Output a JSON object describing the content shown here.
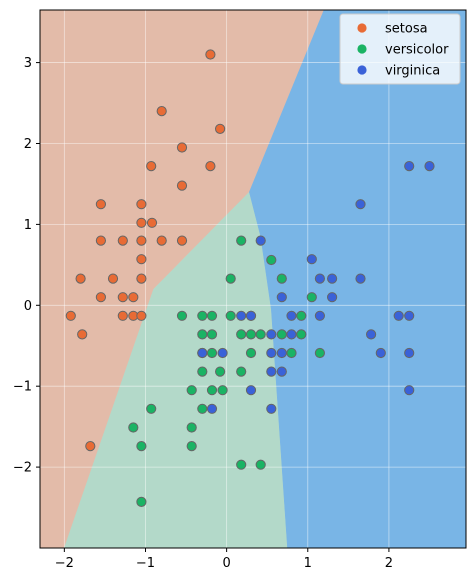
{
  "chart_data": {
    "type": "scatter",
    "title": "",
    "xlabel": "",
    "ylabel": "",
    "xlim": [
      -2.3,
      2.95
    ],
    "ylim": [
      -3.0,
      3.65
    ],
    "xticks": [
      -2,
      -1,
      0,
      1,
      2
    ],
    "yticks": [
      -2,
      -1,
      0,
      1,
      2,
      3
    ],
    "xtick_labels": [
      "−2",
      "−1",
      "0",
      "1",
      "2"
    ],
    "ytick_labels": [
      "−2",
      "−1",
      "0",
      "1",
      "2",
      "3"
    ],
    "grid": true,
    "legend_position": "top-right",
    "regions": [
      {
        "name": "setosa",
        "color": "#e3bba9",
        "polygon": [
          [
            -2.3,
            -3.0
          ],
          [
            -2.3,
            3.65
          ],
          [
            1.2,
            3.65
          ],
          [
            0.28,
            1.4
          ],
          [
            -0.9,
            0.2
          ],
          [
            -2.0,
            -3.0
          ]
        ]
      },
      {
        "name": "versicolor",
        "color": "#b3d9c9",
        "polygon": [
          [
            -2.0,
            -3.0
          ],
          [
            -0.9,
            0.2
          ],
          [
            0.28,
            1.4
          ],
          [
            0.42,
            0.85
          ],
          [
            0.55,
            -0.05
          ],
          [
            0.75,
            -3.0
          ]
        ]
      },
      {
        "name": "virginica",
        "color": "#79b5e6",
        "polygon": [
          [
            1.2,
            3.65
          ],
          [
            2.95,
            3.65
          ],
          [
            2.95,
            -3.0
          ],
          [
            0.75,
            -3.0
          ],
          [
            0.55,
            -0.05
          ],
          [
            0.42,
            0.85
          ],
          [
            0.28,
            1.4
          ]
        ]
      }
    ],
    "series": [
      {
        "name": "setosa",
        "color": "#e86b35",
        "points": [
          [
            -0.2,
            3.1
          ],
          [
            -0.8,
            2.4
          ],
          [
            -0.08,
            2.18
          ],
          [
            -0.55,
            1.95
          ],
          [
            -0.2,
            1.72
          ],
          [
            -0.93,
            1.72
          ],
          [
            -0.55,
            1.48
          ],
          [
            -1.55,
            1.25
          ],
          [
            -1.05,
            1.25
          ],
          [
            -1.05,
            1.02
          ],
          [
            -0.92,
            1.02
          ],
          [
            -1.55,
            0.8
          ],
          [
            -1.28,
            0.8
          ],
          [
            -1.05,
            0.8
          ],
          [
            -0.8,
            0.8
          ],
          [
            -0.55,
            0.8
          ],
          [
            -1.05,
            0.57
          ],
          [
            -1.8,
            0.33
          ],
          [
            -1.4,
            0.33
          ],
          [
            -1.05,
            0.33
          ],
          [
            -1.55,
            0.1
          ],
          [
            -1.28,
            0.1
          ],
          [
            -1.15,
            0.1
          ],
          [
            -1.92,
            -0.13
          ],
          [
            -1.28,
            -0.13
          ],
          [
            -1.15,
            -0.13
          ],
          [
            -1.05,
            -0.13
          ],
          [
            -1.78,
            -0.36
          ],
          [
            -1.68,
            -1.74
          ]
        ]
      },
      {
        "name": "versicolor",
        "color": "#1ab364",
        "points": [
          [
            0.18,
            0.8
          ],
          [
            0.05,
            0.33
          ],
          [
            0.55,
            0.56
          ],
          [
            0.68,
            0.33
          ],
          [
            1.05,
            0.1
          ],
          [
            -0.55,
            -0.13
          ],
          [
            -0.3,
            -0.13
          ],
          [
            -0.18,
            -0.13
          ],
          [
            0.05,
            -0.13
          ],
          [
            0.3,
            -0.13
          ],
          [
            0.92,
            -0.13
          ],
          [
            -0.3,
            -0.36
          ],
          [
            -0.18,
            -0.36
          ],
          [
            0.18,
            -0.36
          ],
          [
            0.3,
            -0.36
          ],
          [
            0.42,
            -0.36
          ],
          [
            0.68,
            -0.36
          ],
          [
            0.92,
            -0.36
          ],
          [
            -0.3,
            -0.59
          ],
          [
            -0.18,
            -0.59
          ],
          [
            0.3,
            -0.59
          ],
          [
            0.8,
            -0.59
          ],
          [
            1.15,
            -0.59
          ],
          [
            -0.3,
            -0.82
          ],
          [
            -0.08,
            -0.82
          ],
          [
            0.18,
            -0.82
          ],
          [
            -0.43,
            -1.05
          ],
          [
            -0.18,
            -1.05
          ],
          [
            -0.05,
            -1.05
          ],
          [
            -0.3,
            -1.28
          ],
          [
            -0.93,
            -1.28
          ],
          [
            -1.15,
            -1.51
          ],
          [
            -0.43,
            -1.51
          ],
          [
            -1.05,
            -1.74
          ],
          [
            -0.43,
            -1.74
          ],
          [
            0.18,
            -1.97
          ],
          [
            0.42,
            -1.97
          ],
          [
            -1.05,
            -2.43
          ]
        ]
      },
      {
        "name": "virginica",
        "color": "#3a62d8",
        "points": [
          [
            2.25,
            1.72
          ],
          [
            2.5,
            1.72
          ],
          [
            1.65,
            1.25
          ],
          [
            0.42,
            0.8
          ],
          [
            1.05,
            0.57
          ],
          [
            1.15,
            0.33
          ],
          [
            1.3,
            0.33
          ],
          [
            1.65,
            0.33
          ],
          [
            0.68,
            0.1
          ],
          [
            1.3,
            0.1
          ],
          [
            0.18,
            -0.13
          ],
          [
            0.3,
            -0.13
          ],
          [
            0.8,
            -0.13
          ],
          [
            1.15,
            -0.13
          ],
          [
            2.12,
            -0.13
          ],
          [
            2.25,
            -0.13
          ],
          [
            0.55,
            -0.36
          ],
          [
            0.8,
            -0.36
          ],
          [
            1.78,
            -0.36
          ],
          [
            -0.3,
            -0.59
          ],
          [
            -0.05,
            -0.59
          ],
          [
            0.55,
            -0.59
          ],
          [
            0.68,
            -0.59
          ],
          [
            1.9,
            -0.59
          ],
          [
            2.25,
            -0.59
          ],
          [
            0.55,
            -0.82
          ],
          [
            0.68,
            -0.82
          ],
          [
            0.3,
            -1.05
          ],
          [
            2.25,
            -1.05
          ],
          [
            -0.18,
            -1.28
          ],
          [
            0.55,
            -1.28
          ]
        ]
      }
    ]
  }
}
